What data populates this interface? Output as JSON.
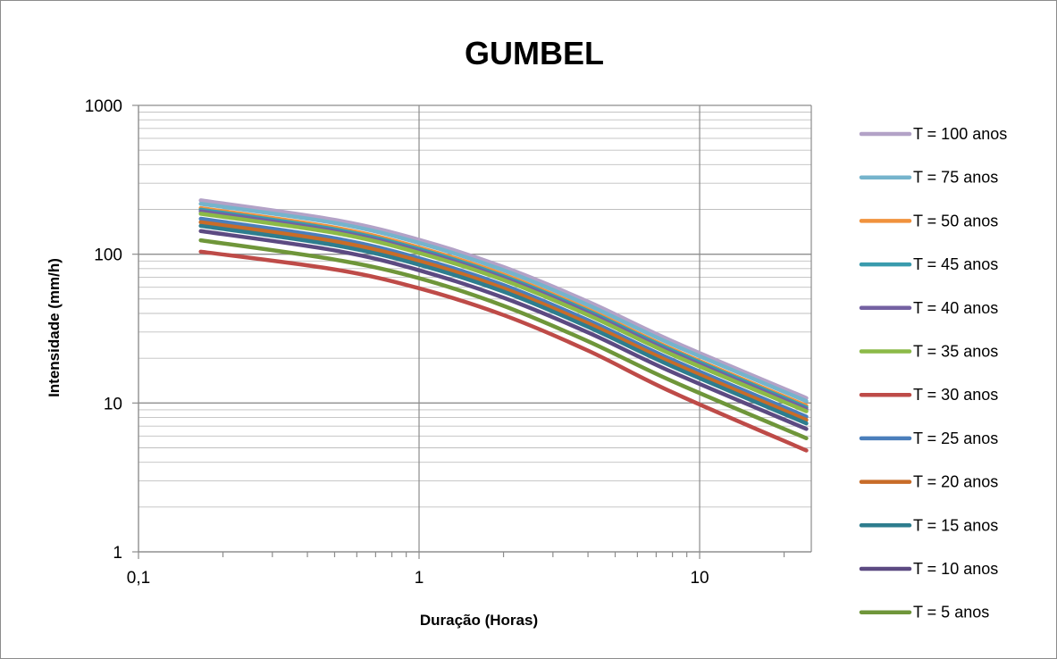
{
  "chart_data": {
    "type": "line",
    "title": "GUMBEL",
    "xlabel": "Duração (Horas)",
    "ylabel": "Intensidade (mm/h)",
    "x_scale": "log",
    "y_scale": "log",
    "xlim": [
      0.1,
      25
    ],
    "ylim": [
      1,
      1000
    ],
    "x_ticks": [
      0.1,
      1,
      10
    ],
    "x_tick_labels": [
      "0,1",
      "1",
      "10"
    ],
    "y_ticks": [
      1,
      10,
      100,
      1000
    ],
    "y_tick_labels": [
      "1",
      "10",
      "100",
      "1000"
    ],
    "grid": true,
    "legend_position": "right",
    "x": [
      0.1667,
      0.5,
      1,
      2,
      4,
      8,
      24
    ],
    "series": [
      {
        "name": "T = 100 anos",
        "color": "#b3a2c7",
        "values": [
          230,
          170,
          125,
          82,
          48,
          26,
          10.8
        ]
      },
      {
        "name": "T = 75 anos",
        "color": "#75b4cc",
        "values": [
          218,
          162,
          119,
          78,
          45.5,
          24.7,
          10.3
        ]
      },
      {
        "name": "T = 50 anos",
        "color": "#f0923d",
        "values": [
          204,
          151,
          111,
          73,
          42.5,
          23,
          9.6
        ]
      },
      {
        "name": "T = 45 anos",
        "color": "#3a9bad",
        "values": [
          199,
          147,
          108,
          71,
          41.5,
          22.5,
          9.35
        ]
      },
      {
        "name": "T = 40 anos",
        "color": "#7461a2",
        "values": [
          194,
          143,
          105,
          69,
          40.3,
          21.8,
          9.1
        ]
      },
      {
        "name": "T = 35 anos",
        "color": "#8cba48",
        "values": [
          187,
          139,
          102,
          67,
          39,
          21.1,
          8.8
        ]
      },
      {
        "name": "T = 30 anos",
        "color": "#be4b48",
        "values": [
          104,
          79,
          59,
          39,
          22.5,
          11.8,
          4.8
        ]
      },
      {
        "name": "T = 25 anos",
        "color": "#4a7ebb",
        "values": [
          173,
          128,
          94,
          62,
          36,
          19.5,
          8.1
        ]
      },
      {
        "name": "T = 20 anos",
        "color": "#c86c28",
        "values": [
          164,
          122,
          90,
          59,
          34.3,
          18.6,
          7.7
        ]
      },
      {
        "name": "T = 15 anos",
        "color": "#2e7d8e",
        "values": [
          155,
          115,
          85,
          56,
          32.5,
          17.6,
          7.3
        ]
      },
      {
        "name": "T = 10 anos",
        "color": "#5c4a82",
        "values": [
          143,
          106,
          78,
          51,
          29.8,
          16.1,
          6.7
        ]
      },
      {
        "name": "T = 5 anos",
        "color": "#6f963a",
        "values": [
          124,
          92,
          69,
          45,
          26,
          14,
          5.8
        ]
      }
    ],
    "legend_order": [
      "T = 100 anos",
      "T = 75 anos",
      "T = 50 anos",
      "T = 45 anos",
      "T = 40 anos",
      "T = 35 anos",
      "T = 30 anos",
      "T = 25 anos",
      "T = 20 anos",
      "T = 15 anos",
      "T = 10 anos",
      "T = 5 anos"
    ],
    "draw_order": [
      "T = 100 anos",
      "T = 75 anos",
      "T = 50 anos",
      "T = 45 anos",
      "T = 40 anos",
      "T = 35 anos",
      "T = 25 anos",
      "T = 20 anos",
      "T = 15 anos",
      "T = 10 anos",
      "T = 5 anos",
      "T = 30 anos"
    ]
  }
}
